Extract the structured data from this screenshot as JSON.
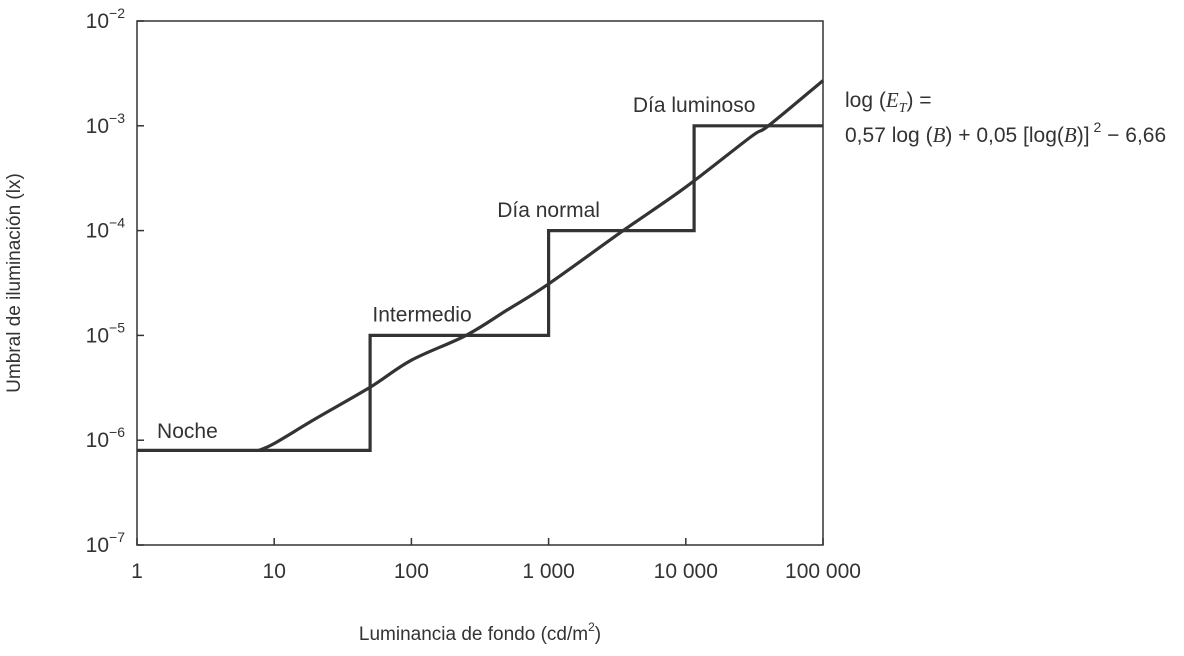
{
  "chart_data": {
    "type": "line",
    "xlabel": "Luminancia de fondo (cd/m",
    "xlabel_sup": "2",
    "xlabel_close": ")",
    "ylabel": "Umbral de iluminación (lx)",
    "x_scale": "log",
    "y_scale": "log",
    "xlim": [
      1,
      100000
    ],
    "ylim": [
      1e-07,
      0.01
    ],
    "x_ticks": [
      {
        "value": 1,
        "label": "1"
      },
      {
        "value": 10,
        "label": "10"
      },
      {
        "value": 100,
        "label": "100"
      },
      {
        "value": 1000,
        "label": "1 000"
      },
      {
        "value": 10000,
        "label": "10 000"
      },
      {
        "value": 100000,
        "label": "100 000"
      }
    ],
    "y_ticks": [
      {
        "value": 1e-07,
        "base": "10",
        "exp": "−7"
      },
      {
        "value": 1e-06,
        "base": "10",
        "exp": "−6"
      },
      {
        "value": 1e-05,
        "base": "10",
        "exp": "−5"
      },
      {
        "value": 0.0001,
        "base": "10",
        "exp": "−4"
      },
      {
        "value": 0.001,
        "base": "10",
        "exp": "−3"
      },
      {
        "value": 0.01,
        "base": "10",
        "exp": "−2"
      }
    ],
    "grid": false,
    "series": [
      {
        "kind": "step",
        "points": [
          [
            1,
            8e-07
          ],
          [
            50,
            8e-07
          ],
          [
            50,
            1e-05
          ],
          [
            1000,
            1e-05
          ],
          [
            1000,
            0.0001
          ],
          [
            11500,
            0.0001
          ],
          [
            11500,
            0.001
          ],
          [
            100000,
            0.001
          ]
        ]
      },
      {
        "kind": "curve",
        "equation": "log(E_T) = 0.57 log(B) + 0.05 [log(B)]^2 − 6.66",
        "points": [
          [
            7.7,
            8e-07
          ],
          [
            10,
            9.3e-07
          ],
          [
            20,
            1.6e-06
          ],
          [
            50,
            3.2e-06
          ],
          [
            100,
            5.8e-06
          ],
          [
            250,
            1e-05
          ],
          [
            500,
            1.75e-05
          ],
          [
            1000,
            3.1e-05
          ],
          [
            3500,
            0.0001
          ],
          [
            10000,
            0.00026
          ],
          [
            30000,
            0.00079
          ],
          [
            40000,
            0.001
          ],
          [
            100000,
            0.0027
          ]
        ]
      }
    ],
    "annotations": [
      {
        "text": "Noche",
        "x": 1.4,
        "y": 1.05e-06,
        "anchor": "start"
      },
      {
        "text": "Intermedio",
        "x": 52,
        "y": 1.35e-05,
        "anchor": "start"
      },
      {
        "text": "Día normal",
        "x": 1000,
        "y": 0.000135,
        "anchor": "middle"
      },
      {
        "text": "Día luminoso",
        "x": 11500,
        "y": 0.00135,
        "anchor": "middle"
      }
    ],
    "formula": {
      "line1_prefix": "log (",
      "line1_var": "E",
      "line1_sub": "T",
      "line1_suffix": ") =",
      "line2_a": "0,57 log (",
      "line2_var1": "B",
      "line2_b": ") + 0,05 [log(",
      "line2_var2": "B",
      "line2_c": ")]",
      "line2_sup": "2",
      "line2_d": " − 6,66"
    },
    "colors": {
      "line": "#333333",
      "axis": "#333333",
      "text": "#333333"
    }
  }
}
